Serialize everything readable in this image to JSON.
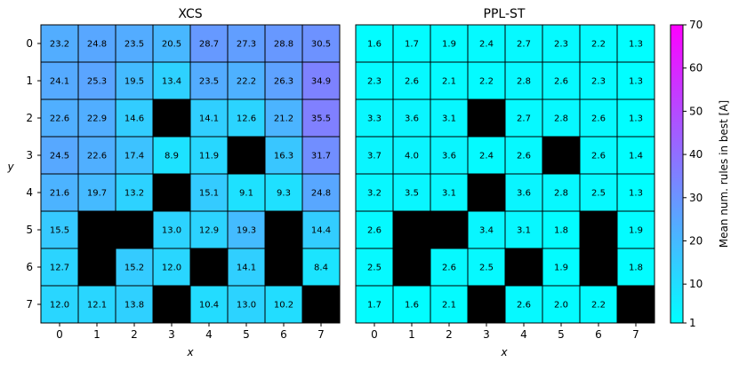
{
  "chart_data": [
    {
      "type": "heatmap",
      "title": "XCS",
      "xlabel": "x",
      "ylabel": "y",
      "x_ticks": [
        "0",
        "1",
        "2",
        "3",
        "4",
        "5",
        "6",
        "7"
      ],
      "y_ticks": [
        "0",
        "1",
        "2",
        "3",
        "4",
        "5",
        "6",
        "7"
      ],
      "values": [
        [
          23.2,
          24.8,
          23.5,
          20.5,
          28.7,
          27.3,
          28.8,
          30.5
        ],
        [
          24.1,
          25.3,
          19.5,
          13.4,
          23.5,
          22.2,
          26.3,
          34.9
        ],
        [
          22.6,
          22.9,
          14.6,
          null,
          14.1,
          12.6,
          21.2,
          35.5
        ],
        [
          24.5,
          22.6,
          17.4,
          8.9,
          11.9,
          null,
          16.3,
          31.7
        ],
        [
          21.6,
          19.7,
          13.2,
          null,
          15.1,
          9.1,
          9.3,
          24.8
        ],
        [
          15.5,
          null,
          null,
          13.0,
          12.9,
          19.3,
          null,
          14.4
        ],
        [
          12.7,
          null,
          15.2,
          12.0,
          null,
          14.1,
          null,
          8.4
        ],
        [
          12.0,
          12.1,
          13.8,
          null,
          10.4,
          13.0,
          10.2,
          null
        ]
      ]
    },
    {
      "type": "heatmap",
      "title": "PPL-ST",
      "xlabel": "x",
      "ylabel": "",
      "x_ticks": [
        "0",
        "1",
        "2",
        "3",
        "4",
        "5",
        "6",
        "7"
      ],
      "y_ticks": [],
      "values": [
        [
          1.6,
          1.7,
          1.9,
          2.4,
          2.7,
          2.3,
          2.2,
          1.3
        ],
        [
          2.3,
          2.6,
          2.1,
          2.2,
          2.8,
          2.6,
          2.3,
          1.3
        ],
        [
          3.3,
          3.6,
          3.1,
          null,
          2.7,
          2.8,
          2.6,
          1.3
        ],
        [
          3.7,
          4.0,
          3.6,
          2.4,
          2.6,
          null,
          2.6,
          1.4
        ],
        [
          3.2,
          3.5,
          3.1,
          null,
          3.6,
          2.8,
          2.5,
          1.3
        ],
        [
          2.6,
          null,
          null,
          3.4,
          3.1,
          1.8,
          null,
          1.9
        ],
        [
          2.5,
          null,
          2.6,
          2.5,
          null,
          1.9,
          null,
          1.8
        ],
        [
          1.7,
          1.6,
          2.1,
          null,
          2.6,
          2.0,
          2.2,
          null
        ]
      ]
    }
  ],
  "colorbar": {
    "label": "Mean num. rules in best [A]",
    "colormap": "cool",
    "range": [
      1,
      70
    ],
    "ticks": [
      "1",
      "10",
      "20",
      "30",
      "40",
      "50",
      "60",
      "70"
    ]
  },
  "colors": {
    "blocked_cell": "#000000",
    "cmap_low": "#00ffff",
    "cmap_high": "#ff00ff"
  }
}
